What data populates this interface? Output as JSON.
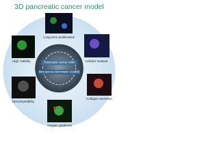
{
  "title": "3D pancreatic cancer model",
  "center": {
    "top_label": "Pancreatic cancer cells",
    "bottom_label": "Microporous Biomimetic Scaffold"
  },
  "features": [
    "Long term proliferation",
    "Cellular masses",
    "Collagen secretion",
    "Oxygen gradients",
    "Biocompatibility",
    "High Viability"
  ]
}
